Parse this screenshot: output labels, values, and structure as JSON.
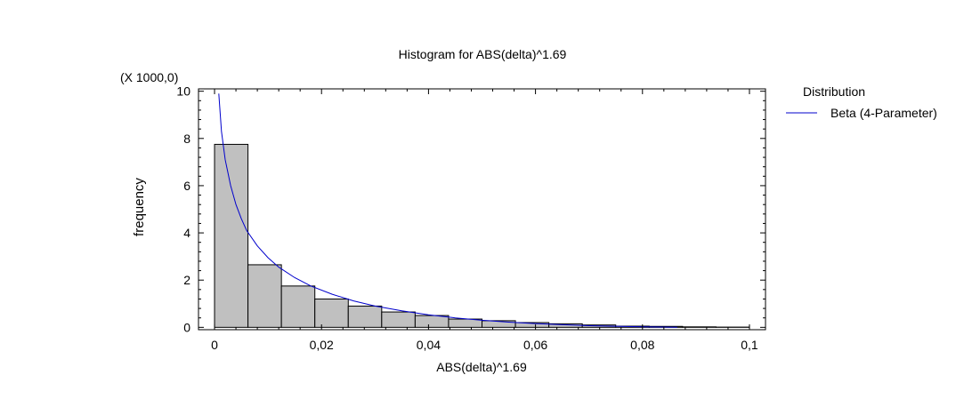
{
  "chart_data": {
    "type": "bar",
    "title": "Histogram for ABS(delta)^1.69",
    "xlabel": "ABS(delta)^1.69",
    "ylabel": "frequency",
    "y_multiplier_label": "(X 1000,0)",
    "xlim": [
      -0.003,
      0.103
    ],
    "ylim": [
      -0.1,
      10.1
    ],
    "x_ticks": [
      0,
      0.02,
      0.04,
      0.06,
      0.08,
      0.1
    ],
    "x_tick_labels": [
      "0",
      "0,02",
      "0,04",
      "0,06",
      "0,08",
      "0,1"
    ],
    "y_ticks": [
      0,
      2,
      4,
      6,
      8,
      10
    ],
    "y_tick_labels": [
      "0",
      "2",
      "4",
      "6",
      "8",
      "10"
    ],
    "bins": [
      {
        "x0": 0.0,
        "x1": 0.00625,
        "value": 7.75
      },
      {
        "x0": 0.00625,
        "x1": 0.0125,
        "value": 2.65
      },
      {
        "x0": 0.0125,
        "x1": 0.01875,
        "value": 1.75
      },
      {
        "x0": 0.01875,
        "x1": 0.025,
        "value": 1.2
      },
      {
        "x0": 0.025,
        "x1": 0.03125,
        "value": 0.9
      },
      {
        "x0": 0.03125,
        "x1": 0.0375,
        "value": 0.65
      },
      {
        "x0": 0.0375,
        "x1": 0.04375,
        "value": 0.5
      },
      {
        "x0": 0.04375,
        "x1": 0.05,
        "value": 0.35
      },
      {
        "x0": 0.05,
        "x1": 0.05625,
        "value": 0.28
      },
      {
        "x0": 0.05625,
        "x1": 0.0625,
        "value": 0.2
      },
      {
        "x0": 0.0625,
        "x1": 0.06875,
        "value": 0.15
      },
      {
        "x0": 0.06875,
        "x1": 0.075,
        "value": 0.1
      },
      {
        "x0": 0.075,
        "x1": 0.08125,
        "value": 0.05
      },
      {
        "x0": 0.08125,
        "x1": 0.0875,
        "value": 0.04
      },
      {
        "x0": 0.0875,
        "x1": 0.09375,
        "value": 0.02
      },
      {
        "x0": 0.09375,
        "x1": 0.1,
        "value": 0.01
      }
    ],
    "series": [
      {
        "name": "Beta (4-Parameter)",
        "type": "line",
        "color": "#0000cc",
        "x": [
          0.0008,
          0.0013,
          0.002,
          0.003,
          0.004,
          0.005,
          0.006,
          0.008,
          0.01,
          0.012,
          0.015,
          0.018,
          0.022,
          0.026,
          0.03,
          0.035,
          0.04,
          0.045,
          0.05,
          0.055,
          0.06,
          0.065,
          0.07,
          0.075,
          0.08,
          0.085,
          0.0865
        ],
        "y": [
          9.9,
          8.3,
          7.1,
          6.0,
          5.2,
          4.6,
          4.1,
          3.45,
          2.95,
          2.55,
          2.1,
          1.75,
          1.4,
          1.12,
          0.9,
          0.7,
          0.53,
          0.4,
          0.3,
          0.22,
          0.16,
          0.11,
          0.07,
          0.045,
          0.025,
          0.01,
          0.0
        ]
      }
    ],
    "bar_fill": "#c0c0c0",
    "bar_stroke": "#000000",
    "grid": false,
    "legend": {
      "placement": "right",
      "title": "Distribution",
      "entries": [
        "Beta (4-Parameter)"
      ]
    }
  }
}
